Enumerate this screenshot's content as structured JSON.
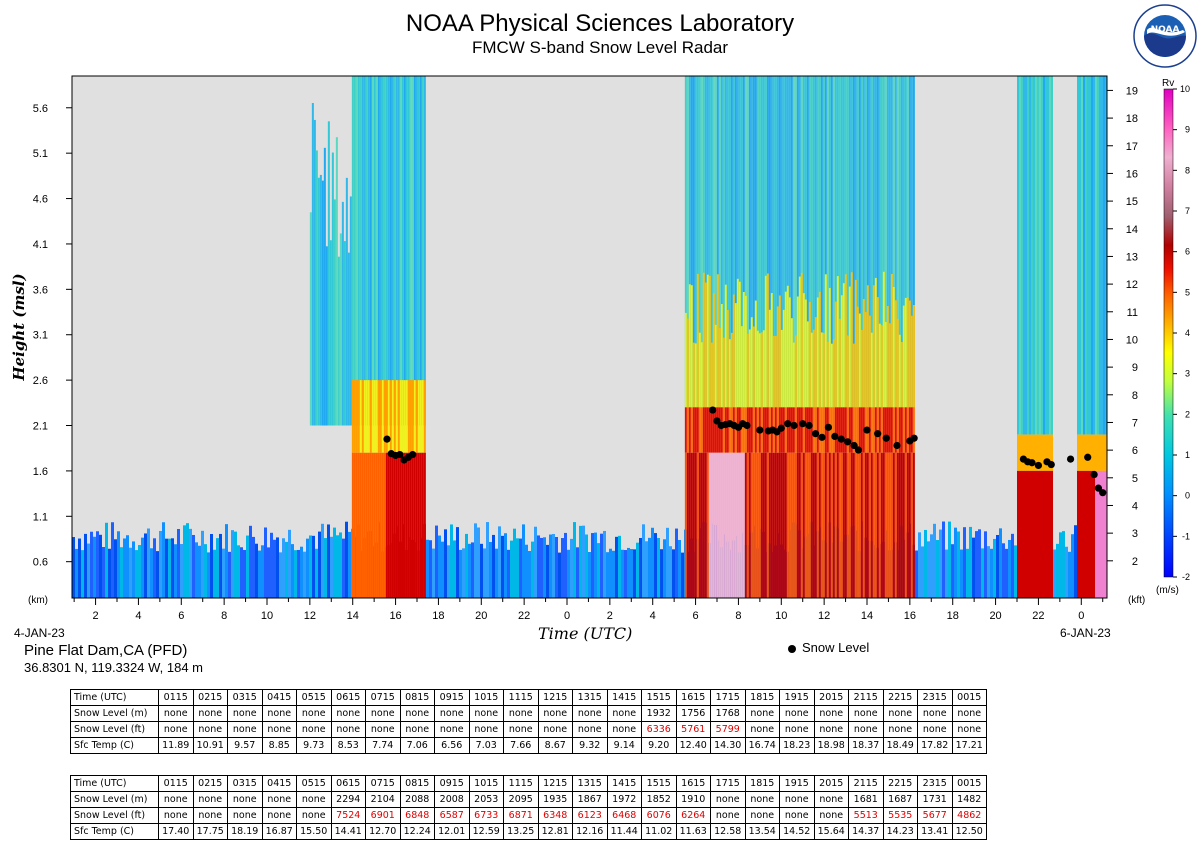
{
  "header": {
    "title": "NOAA Physical Sciences Laboratory",
    "subtitle": "FMCW S-band Snow Level Radar",
    "logo_text": "NOAA",
    "logo_ring_text": "NATIONAL OCEANIC AND ATMOSPHERIC ADMINISTRATION · U.S. DEPARTMENT OF COMMERCE"
  },
  "site": {
    "name": "Pine Flat Dam,CA (PFD)",
    "coords": "36.8301 N, 119.3324 W, 184 m"
  },
  "legend": {
    "snow_level_label": "Snow Level"
  },
  "chart_data": {
    "type": "heatmap",
    "title": "NOAA Physical Sciences Laboratory",
    "subtitle": "FMCW S-band Snow Level Radar",
    "xlabel": "Time (UTC)",
    "ylabel": "Height (msl)",
    "date_start": "4-JAN-23",
    "date_end": "6-JAN-23",
    "x_ticks": [
      "2",
      "4",
      "6",
      "8",
      "10",
      "12",
      "14",
      "16",
      "18",
      "20",
      "22",
      "0",
      "2",
      "4",
      "6",
      "8",
      "10",
      "12",
      "14",
      "16",
      "18",
      "20",
      "22",
      "0"
    ],
    "x_tick_hours": [
      2,
      4,
      6,
      8,
      10,
      12,
      14,
      16,
      18,
      20,
      22,
      24,
      26,
      28,
      30,
      32,
      34,
      36,
      38,
      40,
      42,
      44,
      46,
      48
    ],
    "x_range_hours": [
      0.9,
      49.2
    ],
    "y_unit_left": "(km)",
    "y_ticks_km": [
      "0.6",
      "1.1",
      "1.6",
      "2.1",
      "2.6",
      "3.1",
      "3.6",
      "4.1",
      "4.6",
      "5.1",
      "5.6"
    ],
    "y_range_km": [
      0.2,
      5.95
    ],
    "y_unit_right": "(kft)",
    "y_ticks_kft": [
      "2",
      "3",
      "4",
      "5",
      "6",
      "7",
      "8",
      "9",
      "10",
      "11",
      "12",
      "13",
      "14",
      "15",
      "16",
      "17",
      "18",
      "19"
    ],
    "colorbar": {
      "label": "Rv",
      "unit": "(m/s)",
      "ticks": [
        "-2",
        "-1",
        "0",
        "1",
        "2",
        "3",
        "4",
        "5",
        "6",
        "7",
        "8",
        "9",
        "10"
      ],
      "range": [
        -2,
        10
      ]
    },
    "grid": false,
    "snow_level_points": [
      {
        "t": 15.6,
        "h": 1.95
      },
      {
        "t": 15.8,
        "h": 1.79
      },
      {
        "t": 16.0,
        "h": 1.77
      },
      {
        "t": 16.2,
        "h": 1.78
      },
      {
        "t": 16.4,
        "h": 1.72
      },
      {
        "t": 16.6,
        "h": 1.75
      },
      {
        "t": 16.8,
        "h": 1.78
      },
      {
        "t": 30.8,
        "h": 2.27
      },
      {
        "t": 31.0,
        "h": 2.15
      },
      {
        "t": 31.2,
        "h": 2.1
      },
      {
        "t": 31.4,
        "h": 2.11
      },
      {
        "t": 31.6,
        "h": 2.12
      },
      {
        "t": 31.8,
        "h": 2.1
      },
      {
        "t": 32.0,
        "h": 2.08
      },
      {
        "t": 32.2,
        "h": 2.12
      },
      {
        "t": 32.4,
        "h": 2.1
      },
      {
        "t": 33.0,
        "h": 2.05
      },
      {
        "t": 33.4,
        "h": 2.04
      },
      {
        "t": 33.6,
        "h": 2.05
      },
      {
        "t": 33.8,
        "h": 2.03
      },
      {
        "t": 34.0,
        "h": 2.07
      },
      {
        "t": 34.3,
        "h": 2.12
      },
      {
        "t": 34.6,
        "h": 2.1
      },
      {
        "t": 35.0,
        "h": 2.12
      },
      {
        "t": 35.3,
        "h": 2.1
      },
      {
        "t": 35.6,
        "h": 2.01
      },
      {
        "t": 35.9,
        "h": 1.97
      },
      {
        "t": 36.2,
        "h": 2.08
      },
      {
        "t": 36.5,
        "h": 1.98
      },
      {
        "t": 36.8,
        "h": 1.95
      },
      {
        "t": 37.1,
        "h": 1.92
      },
      {
        "t": 37.4,
        "h": 1.88
      },
      {
        "t": 37.6,
        "h": 1.83
      },
      {
        "t": 38.0,
        "h": 2.05
      },
      {
        "t": 38.5,
        "h": 2.01
      },
      {
        "t": 38.9,
        "h": 1.96
      },
      {
        "t": 39.4,
        "h": 1.88
      },
      {
        "t": 40.0,
        "h": 1.93
      },
      {
        "t": 40.2,
        "h": 1.96
      },
      {
        "t": 45.3,
        "h": 1.73
      },
      {
        "t": 45.5,
        "h": 1.7
      },
      {
        "t": 45.7,
        "h": 1.69
      },
      {
        "t": 46.0,
        "h": 1.66
      },
      {
        "t": 46.4,
        "h": 1.7
      },
      {
        "t": 46.6,
        "h": 1.67
      },
      {
        "t": 47.5,
        "h": 1.73
      },
      {
        "t": 48.3,
        "h": 1.75
      },
      {
        "t": 48.6,
        "h": 1.56
      },
      {
        "t": 48.8,
        "h": 1.41
      },
      {
        "t": 49.0,
        "h": 1.36
      }
    ],
    "tables": [
      {
        "rows": [
          {
            "label": "Time (UTC)",
            "values": [
              "0115",
              "0215",
              "0315",
              "0415",
              "0515",
              "0615",
              "0715",
              "0815",
              "0915",
              "1015",
              "1115",
              "1215",
              "1315",
              "1415",
              "1515",
              "1615",
              "1715",
              "1815",
              "1915",
              "2015",
              "2115",
              "2215",
              "2315",
              "0015"
            ]
          },
          {
            "label": "Snow Level (m)",
            "values": [
              "none",
              "none",
              "none",
              "none",
              "none",
              "none",
              "none",
              "none",
              "none",
              "none",
              "none",
              "none",
              "none",
              "none",
              "1932",
              "1756",
              "1768",
              "none",
              "none",
              "none",
              "none",
              "none",
              "none",
              "none"
            ]
          },
          {
            "label": "Snow Level (ft)",
            "values": [
              "none",
              "none",
              "none",
              "none",
              "none",
              "none",
              "none",
              "none",
              "none",
              "none",
              "none",
              "none",
              "none",
              "none",
              "6336",
              "5761",
              "5799",
              "none",
              "none",
              "none",
              "none",
              "none",
              "none",
              "none"
            ]
          },
          {
            "label": "Sfc Temp (C)",
            "values": [
              "11.89",
              "10.91",
              "9.57",
              "8.85",
              "9.73",
              "8.53",
              "7.74",
              "7.06",
              "6.56",
              "7.03",
              "7.66",
              "8.67",
              "9.32",
              "9.14",
              "9.20",
              "12.40",
              "14.30",
              "16.74",
              "18.23",
              "18.98",
              "18.37",
              "18.49",
              "17.82",
              "17.21"
            ]
          }
        ]
      },
      {
        "rows": [
          {
            "label": "Time (UTC)",
            "values": [
              "0115",
              "0215",
              "0315",
              "0415",
              "0515",
              "0615",
              "0715",
              "0815",
              "0915",
              "1015",
              "1115",
              "1215",
              "1315",
              "1415",
              "1515",
              "1615",
              "1715",
              "1815",
              "1915",
              "2015",
              "2115",
              "2215",
              "2315",
              "0015"
            ]
          },
          {
            "label": "Snow Level (m)",
            "values": [
              "none",
              "none",
              "none",
              "none",
              "none",
              "2294",
              "2104",
              "2088",
              "2008",
              "2053",
              "2095",
              "1935",
              "1867",
              "1972",
              "1852",
              "1910",
              "none",
              "none",
              "none",
              "none",
              "1681",
              "1687",
              "1731",
              "1482"
            ]
          },
          {
            "label": "Snow Level (ft)",
            "values": [
              "none",
              "none",
              "none",
              "none",
              "none",
              "7524",
              "6901",
              "6848",
              "6587",
              "6733",
              "6871",
              "6348",
              "6123",
              "6468",
              "6076",
              "6264",
              "none",
              "none",
              "none",
              "none",
              "5513",
              "5535",
              "5677",
              "4862"
            ]
          },
          {
            "label": "Sfc Temp (C)",
            "values": [
              "17.40",
              "17.75",
              "18.19",
              "16.87",
              "15.50",
              "14.41",
              "12.70",
              "12.24",
              "12.01",
              "12.59",
              "13.25",
              "12.81",
              "12.16",
              "11.44",
              "11.02",
              "11.63",
              "12.58",
              "13.54",
              "14.52",
              "15.64",
              "14.37",
              "14.23",
              "13.41",
              "12.50"
            ]
          }
        ]
      }
    ]
  },
  "colors": {
    "background": "#e0e0e0",
    "snow_level_ft_highlight": "#e00000",
    "snow_dot": "#000000"
  }
}
